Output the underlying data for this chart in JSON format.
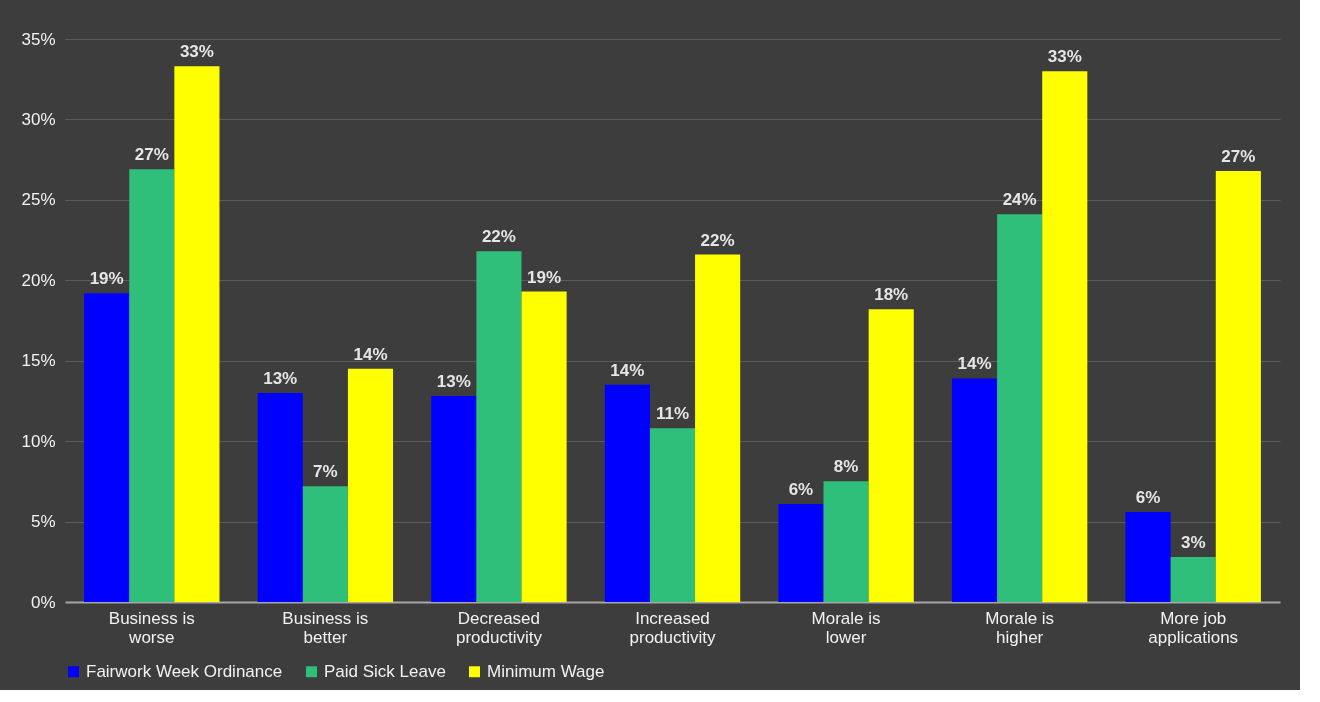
{
  "chart_data": {
    "type": "bar",
    "categories": [
      "Business is worse",
      "Business is better",
      "Decreased productivity",
      "Increased productivity",
      "Morale is lower",
      "Morale is higher",
      "More job applications"
    ],
    "series": [
      {
        "name": "Fairwork Week Ordinance",
        "color": "#0000ff",
        "values": [
          19.2,
          13.0,
          12.8,
          13.5,
          6.1,
          13.9,
          5.6
        ],
        "value_labels": [
          "19%",
          "13%",
          "13%",
          "14%",
          "6%",
          "14%",
          "6%"
        ]
      },
      {
        "name": "Paid Sick Leave",
        "color": "#2fbf7a",
        "values": [
          26.9,
          7.2,
          21.8,
          10.8,
          7.5,
          24.1,
          2.8
        ],
        "value_labels": [
          "27%",
          "7%",
          "22%",
          "11%",
          "8%",
          "24%",
          "3%"
        ]
      },
      {
        "name": "Minimum Wage",
        "color": "#ffff00",
        "values": [
          33.3,
          14.5,
          19.3,
          21.6,
          18.2,
          33.0,
          26.8
        ],
        "value_labels": [
          "33%",
          "14%",
          "19%",
          "22%",
          "18%",
          "33%",
          "27%"
        ]
      }
    ],
    "ylim": [
      0,
      35
    ],
    "yticks": [
      {
        "value": 0,
        "label": "0%"
      },
      {
        "value": 5,
        "label": "5%"
      },
      {
        "value": 10,
        "label": "10%"
      },
      {
        "value": 15,
        "label": "15%"
      },
      {
        "value": 20,
        "label": "20%"
      },
      {
        "value": 25,
        "label": "25%"
      },
      {
        "value": 30,
        "label": "30%"
      },
      {
        "value": 35,
        "label": "35%"
      }
    ],
    "grid": "y",
    "legend": "bottom"
  }
}
